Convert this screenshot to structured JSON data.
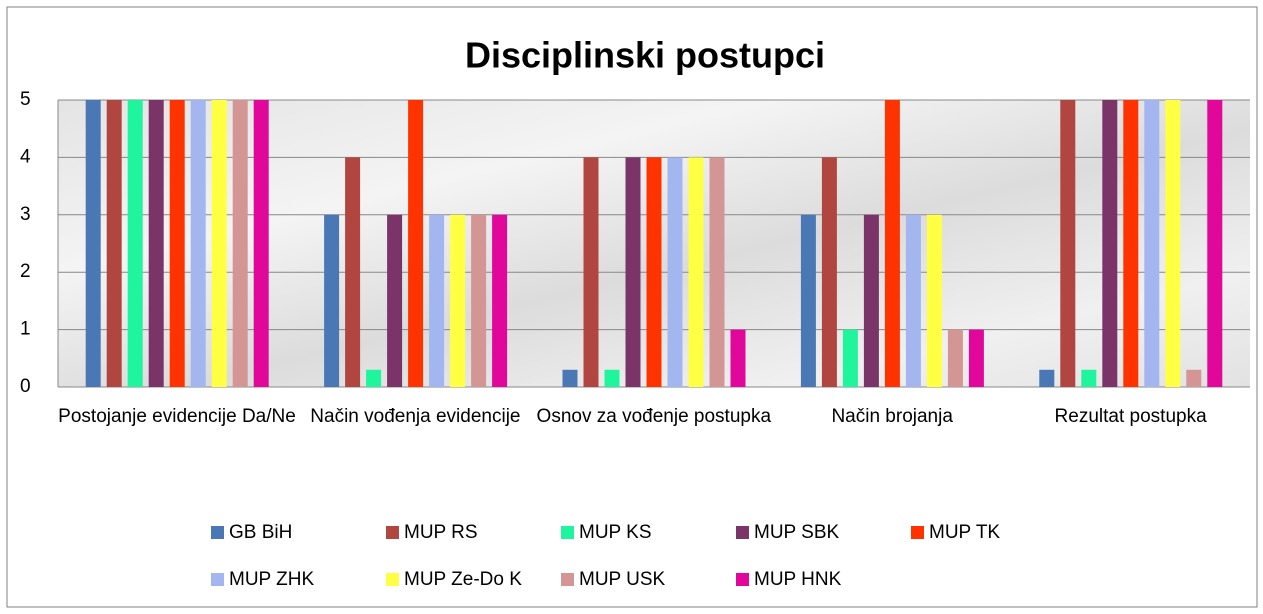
{
  "chart_data": {
    "type": "bar",
    "title": "Disciplinski postupci",
    "categories": [
      "Postojanje evidencije Da/Ne",
      "Način vođenja evidencije",
      "Osnov za vođenje postupka",
      "Način brojanja",
      "Rezultat postupka"
    ],
    "series": [
      {
        "name": "GB BiH",
        "color": "#4a78b4",
        "values": [
          5,
          3,
          0.3,
          3,
          0.3
        ]
      },
      {
        "name": "MUP RS",
        "color": "#b0463f",
        "values": [
          5,
          4,
          4,
          4,
          5
        ]
      },
      {
        "name": "MUP KS",
        "color": "#1ff59c",
        "values": [
          5,
          0.3,
          0.3,
          1,
          0.3
        ]
      },
      {
        "name": "MUP SBK",
        "color": "#7b3467",
        "values": [
          5,
          3,
          4,
          3,
          5
        ]
      },
      {
        "name": "MUP TK",
        "color": "#ff3300",
        "values": [
          5,
          5,
          4,
          5,
          5
        ]
      },
      {
        "name": "MUP ZHK",
        "color": "#a3b6f0",
        "values": [
          5,
          3,
          4,
          3,
          5
        ]
      },
      {
        "name": "MUP Ze-Do K",
        "color": "#ffff44",
        "values": [
          5,
          3,
          4,
          3,
          5
        ]
      },
      {
        "name": "MUP USK",
        "color": "#d39694",
        "values": [
          5,
          3,
          4,
          1,
          0.3
        ]
      },
      {
        "name": "MUP HNK",
        "color": "#e0079a",
        "values": [
          5,
          3,
          1,
          1,
          5
        ]
      }
    ],
    "ylim": [
      0,
      5
    ],
    "yticks": [
      0,
      1,
      2,
      3,
      4,
      5
    ],
    "grid": true,
    "legend": "bottom"
  }
}
